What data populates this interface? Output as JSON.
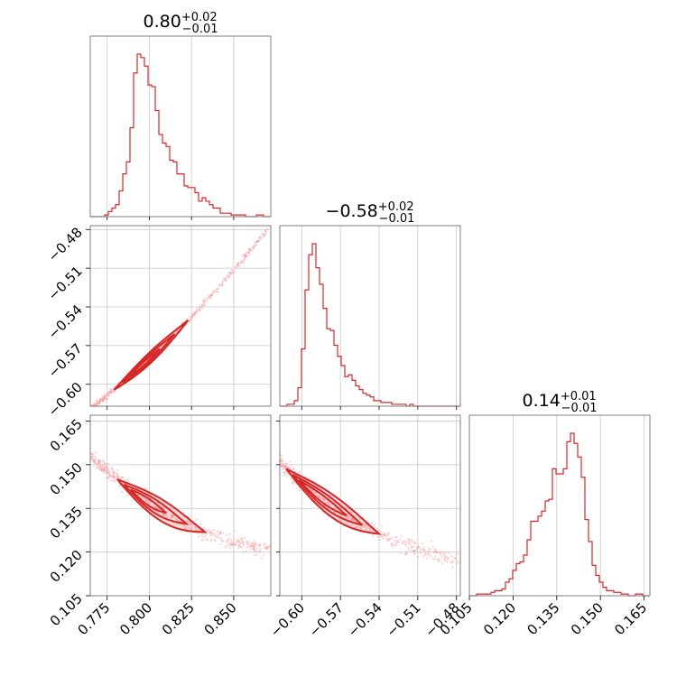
{
  "chart_data": {
    "type": "corner",
    "color": "#d62728",
    "params": [
      {
        "title_value": "0.80",
        "title_plus": "+0.02",
        "title_minus": "−0.01",
        "range": [
          0.765,
          0.872
        ],
        "ticks": [
          0.775,
          0.8,
          0.825,
          0.85
        ],
        "ticklabels": [
          "0.775",
          "0.800",
          "0.825",
          "0.850"
        ],
        "hist": {
          "edges_start": 0.765,
          "bin_width": 0.00214,
          "counts": [
            0,
            0,
            0,
            0,
            1,
            3,
            5,
            7,
            15,
            25,
            32,
            52,
            84,
            95,
            93,
            88,
            77,
            76,
            62,
            48,
            43,
            41,
            33,
            32,
            25,
            25,
            18,
            17,
            17,
            14,
            9,
            11,
            9,
            7,
            5,
            5,
            2,
            2,
            2,
            1,
            1,
            1,
            1,
            0,
            0,
            0,
            1,
            1,
            0,
            0
          ]
        }
      },
      {
        "title_value": "−0.58",
        "title_plus": "+0.02",
        "title_minus": "−0.01",
        "range": [
          -0.617,
          -0.477
        ],
        "ticks": [
          -0.6,
          -0.57,
          -0.54,
          -0.51,
          -0.48
        ],
        "ticklabels": [
          "−0.60",
          "−0.57",
          "−0.54",
          "−0.51",
          "−0.48"
        ],
        "hist": {
          "edges_start": -0.617,
          "bin_width": 0.0028,
          "counts": [
            0,
            0,
            1,
            1,
            3,
            10,
            31,
            63,
            82,
            88,
            75,
            66,
            53,
            42,
            41,
            33,
            27,
            22,
            16,
            17,
            14,
            11,
            9,
            7,
            6,
            5,
            3,
            3,
            2,
            2,
            2,
            1,
            1,
            1,
            1,
            0,
            1,
            0,
            0,
            0,
            0,
            0,
            0,
            0,
            0,
            0,
            0,
            0,
            0,
            0
          ]
        }
      },
      {
        "title_value": "0.14",
        "title_plus": "+0.01",
        "title_minus": "−0.01",
        "range": [
          0.105,
          0.167
        ],
        "ticks": [
          0.105,
          0.12,
          0.135,
          0.15,
          0.165
        ],
        "ticklabels": [
          "0.105",
          "0.120",
          "0.135",
          "0.150",
          "0.165"
        ],
        "ticks_left": [
          0.105,
          0.12,
          0.135,
          0.15,
          0.165
        ],
        "hist": {
          "edges_start": 0.105,
          "bin_width": 0.00124,
          "counts": [
            0,
            0,
            1,
            1,
            1,
            1,
            2,
            3,
            3,
            4,
            8,
            10,
            15,
            19,
            20,
            24,
            33,
            44,
            44,
            47,
            50,
            56,
            57,
            75,
            72,
            72,
            75,
            91,
            96,
            90,
            82,
            70,
            45,
            32,
            18,
            12,
            8,
            5,
            3,
            3,
            2,
            2,
            1,
            1,
            0,
            0,
            1,
            1,
            0,
            0
          ]
        }
      }
    ]
  }
}
